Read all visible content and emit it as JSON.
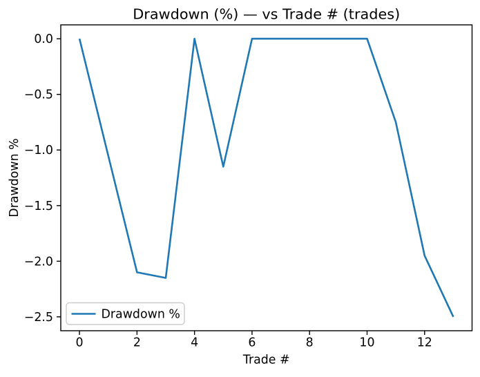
{
  "chart_data": {
    "type": "line",
    "title": "Drawdown (%) — vs Trade # (trades)",
    "xlabel": "Trade #",
    "ylabel": "Drawdown %",
    "x": [
      0,
      1,
      2,
      3,
      4,
      5,
      6,
      7,
      8,
      9,
      10,
      11,
      12,
      13
    ],
    "series": [
      {
        "name": "Drawdown %",
        "color": "#1f77b4",
        "values": [
          0.0,
          -1.05,
          -2.1,
          -2.15,
          0.0,
          -1.15,
          0.0,
          0.0,
          0.0,
          0.0,
          0.0,
          -0.75,
          -1.95,
          -2.5
        ]
      }
    ],
    "xlim": [
      -0.65,
      13.65
    ],
    "ylim": [
      -2.625,
      0.125
    ],
    "xticks": {
      "values": [
        0,
        2,
        4,
        6,
        8,
        10,
        12
      ],
      "labels": [
        "0",
        "2",
        "4",
        "6",
        "8",
        "10",
        "12"
      ]
    },
    "yticks": {
      "values": [
        0,
        -0.5,
        -1,
        -1.5,
        -2,
        -2.5
      ],
      "labels": [
        "0.0",
        "−0.5",
        "−1.0",
        "−1.5",
        "−2.0",
        "−2.5"
      ]
    },
    "grid": false,
    "legend": {
      "position": "lower left",
      "entries": [
        {
          "label": "Drawdown %",
          "color": "#1f77b4"
        }
      ]
    }
  },
  "colors": {
    "line": "#1f77b4",
    "text": "#000000",
    "spine": "#000000",
    "legend_border": "#cccccc",
    "background": "#ffffff"
  }
}
